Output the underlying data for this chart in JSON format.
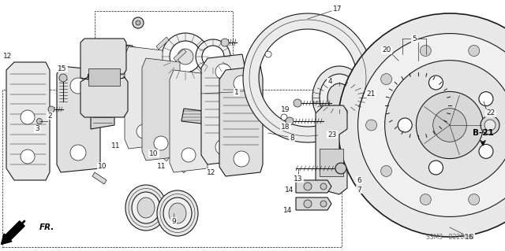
{
  "background_color": "#ffffff",
  "figsize": [
    6.4,
    3.19
  ],
  "dpi": 100,
  "line_color": "#1a1a1a",
  "text_color": "#111111",
  "code_label": "S3M3 - B2200 B",
  "b21_label": "B-21",
  "fr_label": "FR.",
  "lw_thin": 0.5,
  "lw_med": 0.8,
  "lw_thick": 1.2,
  "font_size_parts": 6.5,
  "font_size_code": 5.5,
  "font_size_b21": 7.5,
  "font_size_fr": 7.5
}
